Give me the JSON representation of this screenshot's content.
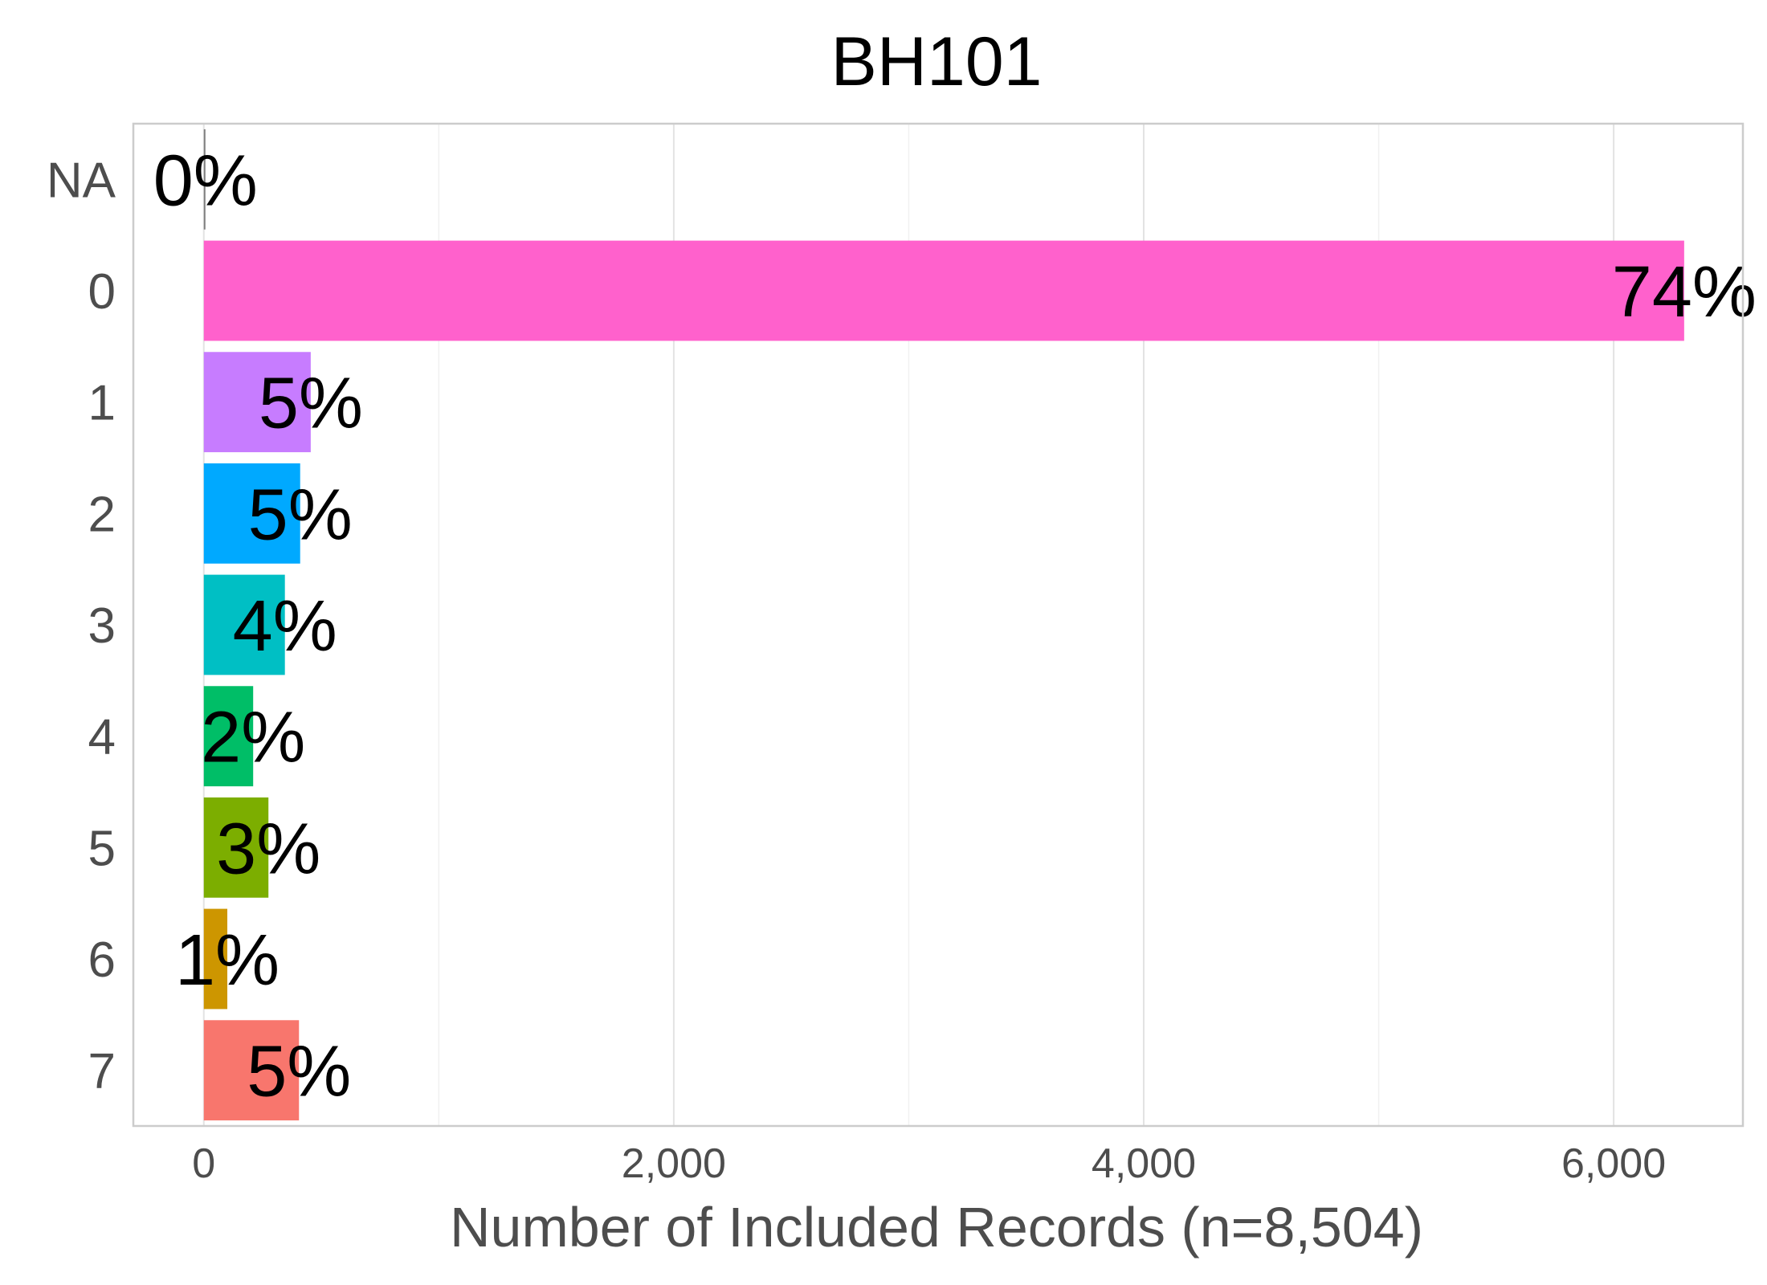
{
  "chart_data": {
    "type": "bar",
    "orientation": "horizontal",
    "title": "BH101",
    "xlabel": "Number of Included Records (n=8,504)",
    "ylabel": "",
    "categories": [
      "NA",
      "0",
      "1",
      "2",
      "3",
      "4",
      "5",
      "6",
      "7"
    ],
    "values": [
      4,
      6300,
      455,
      410,
      345,
      210,
      275,
      100,
      405
    ],
    "labels": [
      "0%",
      "74%",
      "5%",
      "5%",
      "4%",
      "2%",
      "3%",
      "1%",
      "5%"
    ],
    "colors": [
      "#7F7F7F",
      "#FF61CC",
      "#C77CFF",
      "#00A9FF",
      "#00BFC4",
      "#00BE67",
      "#7CAE00",
      "#CD9600",
      "#F8766D"
    ],
    "xlim": [
      -300,
      6550
    ],
    "xticks": [
      0,
      2000,
      4000,
      6000
    ],
    "xtick_labels": [
      "0",
      "2,000",
      "4,000",
      "6,000"
    ],
    "grid": true,
    "legend": "none"
  }
}
